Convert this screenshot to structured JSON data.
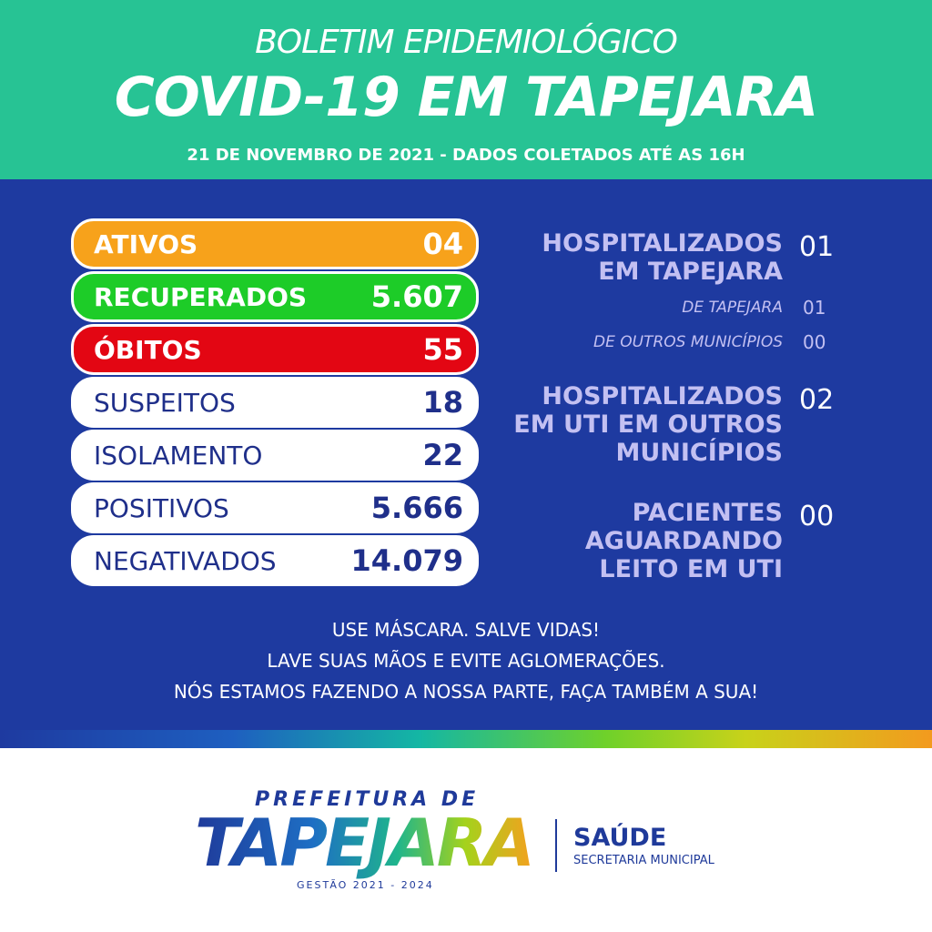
{
  "header": {
    "kicker": "BOLETIM EPIDEMIOLÓGICO",
    "title": "COVID-19 EM TAPEJARA",
    "date": "21 DE NOVEMBRO DE 2021 - DADOS COLETADOS ATÉ AS 16H"
  },
  "stats": [
    {
      "label": "ATIVOS",
      "value": "04"
    },
    {
      "label": "RECUPERADOS",
      "value": "5.607"
    },
    {
      "label": "ÓBITOS",
      "value": "55"
    },
    {
      "label": "SUSPEITOS",
      "value": "18"
    },
    {
      "label": "ISOLAMENTO",
      "value": "22"
    },
    {
      "label": "POSITIVOS",
      "value": "5.666"
    },
    {
      "label": "NEGATIVADOS",
      "value": "14.079"
    }
  ],
  "hospital": [
    {
      "lines": [
        "HOSPITALIZADOS",
        "EM TAPEJARA"
      ],
      "value": "01",
      "details": [
        {
          "label": "DE TAPEJARA",
          "value": "01"
        },
        {
          "label": "DE OUTROS MUNICÍPIOS",
          "value": "00"
        }
      ]
    },
    {
      "lines": [
        "HOSPITALIZADOS",
        "EM UTI EM OUTROS",
        "MUNICÍPIOS"
      ],
      "value": "02"
    },
    {
      "lines": [
        "PACIENTES",
        "AGUARDANDO",
        "LEITO EM UTI"
      ],
      "value": "00"
    }
  ],
  "messages": [
    "USE MÁSCARA. SALVE VIDAS!",
    "LAVE SUAS MÃOS E EVITE AGLOMERAÇÕES.",
    "NÓS ESTAMOS FAZENDO A NOSSA PARTE, FAÇA TAMBÉM A SUA!"
  ],
  "footer": {
    "prefix": "PREFEITURA DE",
    "name": "TAPEJARA",
    "term": "GESTÃO 2021 - 2024",
    "department": "SAÚDE",
    "subtitle": "SECRETARIA MUNICIPAL"
  }
}
